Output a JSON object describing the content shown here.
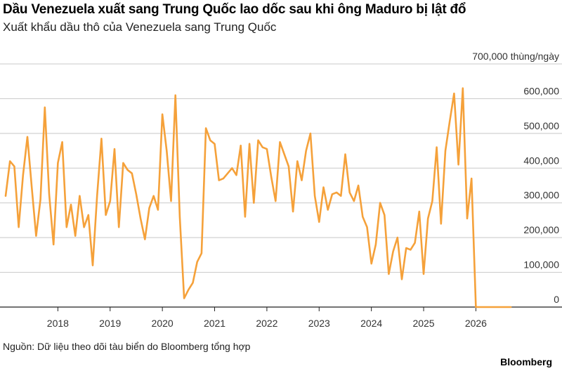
{
  "title": "Dầu Venezuela xuất sang Trung Quốc lao dốc sau khi ông Maduro bị lật đổ",
  "subtitle": "Xuất khẩu dầu thô của Venezuela sang Trung Quốc",
  "source": "Nguồn: Dữ liệu theo dõi tàu biển do Bloomberg tổng hợp",
  "brand": "Bloomberg",
  "chart_data": {
    "type": "line",
    "title": "Dầu Venezuela xuất sang Trung Quốc lao dốc sau khi ông Maduro bị lật đổ",
    "subtitle": "Xuất khẩu dầu thô của Venezuela sang Trung Quốc",
    "ylabel": "thùng/ngày",
    "ylim": [
      0,
      700000
    ],
    "xlim": [
      "2017-01",
      "2026-09"
    ],
    "yticks": [
      0,
      100000,
      200000,
      300000,
      400000,
      500000,
      600000,
      700000
    ],
    "ytick_labels": [
      "0",
      "100,000",
      "200,000",
      "300,000",
      "400,000",
      "500,000",
      "600,000",
      "700,000 thùng/ngày"
    ],
    "xticks": [
      "2018",
      "2019",
      "2020",
      "2021",
      "2022",
      "2023",
      "2024",
      "2025",
      "2026"
    ],
    "grid": true,
    "color": "#f5a13a",
    "series": [
      {
        "x": [
          "2017-01",
          "2017-02",
          "2017-03",
          "2017-04",
          "2017-05",
          "2017-06",
          "2017-07",
          "2017-08",
          "2017-09",
          "2017-10",
          "2017-11",
          "2017-12",
          "2018-01",
          "2018-02",
          "2018-03",
          "2018-04",
          "2018-05",
          "2018-06",
          "2018-07",
          "2018-08",
          "2018-09",
          "2018-10",
          "2018-11",
          "2018-12",
          "2019-01",
          "2019-02",
          "2019-03",
          "2019-04",
          "2019-05",
          "2019-06",
          "2019-07",
          "2019-08",
          "2019-09",
          "2019-10",
          "2019-11",
          "2019-12",
          "2020-01",
          "2020-02",
          "2020-03",
          "2020-04",
          "2020-05",
          "2020-06",
          "2020-07",
          "2020-08",
          "2020-09",
          "2020-10",
          "2020-11",
          "2020-12",
          "2021-01",
          "2021-02",
          "2021-03",
          "2021-04",
          "2021-05",
          "2021-06",
          "2021-07",
          "2021-08",
          "2021-09",
          "2021-10",
          "2021-11",
          "2021-12",
          "2022-01",
          "2022-02",
          "2022-03",
          "2022-04",
          "2022-05",
          "2022-06",
          "2022-07",
          "2022-08",
          "2022-09",
          "2022-10",
          "2022-11",
          "2022-12",
          "2023-01",
          "2023-02",
          "2023-03",
          "2023-04",
          "2023-05",
          "2023-06",
          "2023-07",
          "2023-08",
          "2023-09",
          "2023-10",
          "2023-11",
          "2023-12",
          "2024-01",
          "2024-02",
          "2024-03",
          "2024-04",
          "2024-05",
          "2024-06",
          "2024-07",
          "2024-08",
          "2024-09",
          "2024-10",
          "2024-11",
          "2024-12",
          "2025-01",
          "2025-02",
          "2025-03",
          "2025-04",
          "2025-05",
          "2025-06",
          "2025-07",
          "2025-08",
          "2025-09",
          "2025-10",
          "2025-11",
          "2025-12",
          "2026-01",
          "2026-02",
          "2026-03",
          "2026-04",
          "2026-05",
          "2026-06",
          "2026-07",
          "2026-08",
          "2026-09"
        ],
        "values": [
          320000,
          420000,
          405000,
          230000,
          380000,
          490000,
          345000,
          205000,
          310000,
          575000,
          325000,
          180000,
          415000,
          475000,
          230000,
          295000,
          205000,
          320000,
          230000,
          265000,
          120000,
          320000,
          485000,
          265000,
          305000,
          455000,
          230000,
          415000,
          395000,
          385000,
          325000,
          255000,
          195000,
          285000,
          320000,
          280000,
          555000,
          450000,
          305000,
          610000,
          260000,
          25000,
          50000,
          70000,
          130000,
          155000,
          515000,
          480000,
          470000,
          365000,
          370000,
          385000,
          400000,
          380000,
          465000,
          260000,
          470000,
          300000,
          480000,
          460000,
          455000,
          375000,
          305000,
          475000,
          440000,
          405000,
          275000,
          420000,
          365000,
          450000,
          500000,
          320000,
          245000,
          345000,
          280000,
          325000,
          330000,
          320000,
          440000,
          330000,
          305000,
          350000,
          260000,
          230000,
          125000,
          180000,
          300000,
          265000,
          95000,
          160000,
          200000,
          80000,
          170000,
          165000,
          185000,
          275000,
          95000,
          255000,
          305000,
          460000,
          240000,
          450000,
          535000,
          615000,
          410000,
          630000,
          255000,
          370000,
          0,
          0,
          0,
          0,
          0,
          0,
          0,
          0,
          0
        ]
      }
    ]
  }
}
